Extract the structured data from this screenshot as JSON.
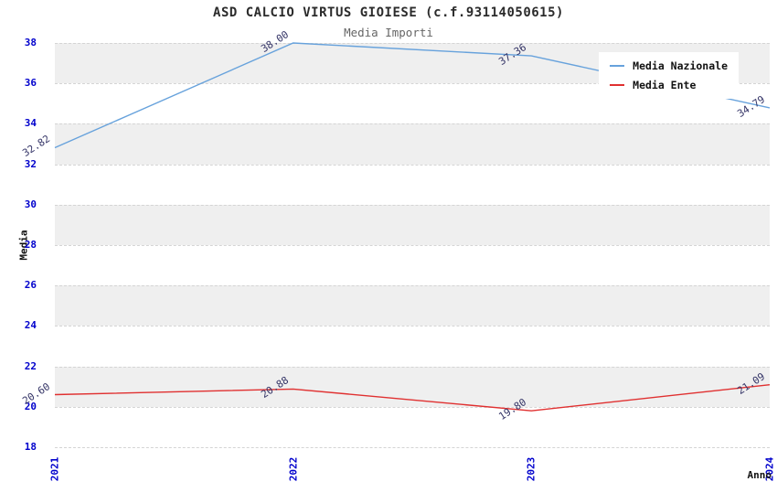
{
  "title": "ASD CALCIO VIRTUS GIOIESE (c.f.93114050615)",
  "subtitle": "Media Importi",
  "chart_data": {
    "type": "line",
    "x": [
      "2021",
      "2022",
      "2023",
      "2024"
    ],
    "series": [
      {
        "name": "Media Nazionale",
        "color": "#67a2dc",
        "values": [
          32.82,
          38.0,
          37.36,
          34.79
        ]
      },
      {
        "name": "Media Ente",
        "color": "#e03030",
        "values": [
          20.6,
          20.88,
          19.8,
          21.09
        ]
      }
    ],
    "title": "ASD CALCIO VIRTUS GIOIESE (c.f.93114050615)",
    "subtitle": "Media Importi",
    "xlabel": "Anno",
    "ylabel": "Media",
    "ylim": [
      18,
      38
    ],
    "ytick_step": 2,
    "grid": "horizontal-bands-dashed-lines",
    "legend_position": "top-right",
    "band_colors": [
      "#efefef",
      "#ffffff"
    ],
    "tick_label_color": "#0000cc",
    "point_label_color": "#333366"
  },
  "legend": {
    "items": [
      {
        "label": "Media Nazionale"
      },
      {
        "label": "Media Ente"
      }
    ]
  }
}
